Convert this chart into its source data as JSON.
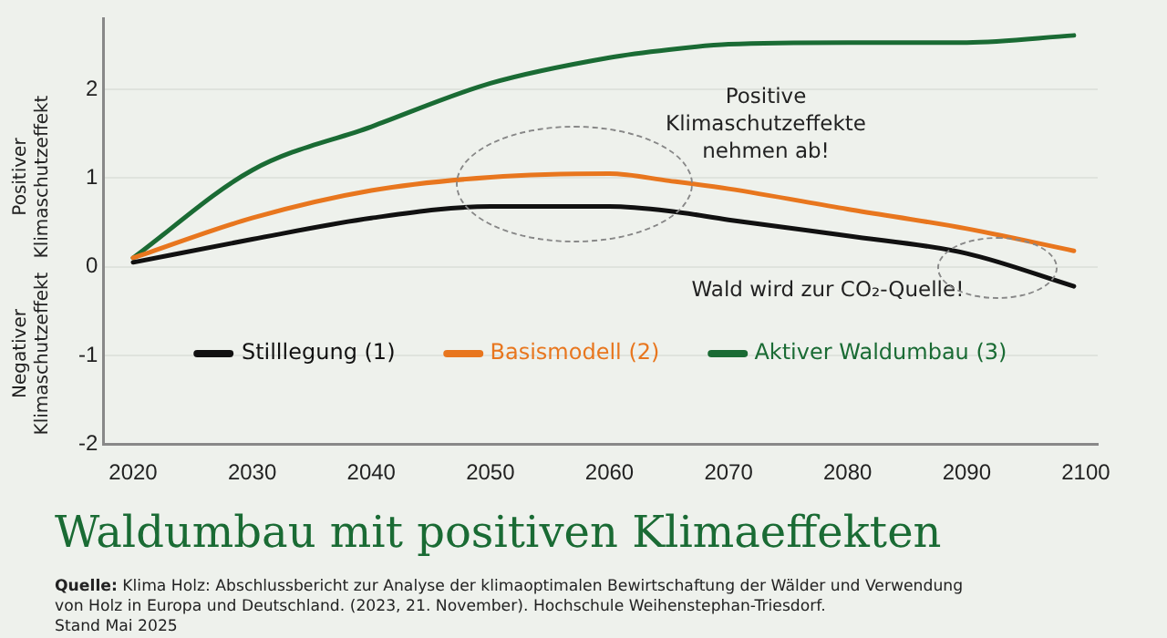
{
  "chart_data": {
    "type": "line",
    "title": "Waldumbau mit positiven Klimaeffekten",
    "ylabel": "Positiver Klimaschutzeffekt",
    "x": [
      2020,
      2030,
      2040,
      2050,
      2060,
      2065,
      2070,
      2080,
      2090,
      2099
    ],
    "series": [
      {
        "name": "Stilllegung (1)",
        "color": "#111111",
        "values": [
          0.05,
          0.31,
          0.55,
          0.68,
          0.68,
          0.63,
          0.53,
          0.35,
          0.15,
          -0.22
        ]
      },
      {
        "name": "Basismodell (2)",
        "color": "#e8761e",
        "values": [
          0.1,
          0.55,
          0.86,
          1.01,
          1.05,
          0.97,
          0.88,
          0.65,
          0.43,
          0.18
        ]
      },
      {
        "name": "Aktiver Waldumbau (3)",
        "color": "#1a6b34",
        "values": [
          0.1,
          1.09,
          1.58,
          2.07,
          2.36,
          2.45,
          2.51,
          2.53,
          2.53,
          2.61
        ]
      }
    ],
    "xlim": [
      2017.5,
      2101
    ],
    "xticks": [
      2020,
      2030,
      2040,
      2050,
      2060,
      2070,
      2080,
      2090,
      2100
    ],
    "ylim": [
      -2,
      2.8
    ],
    "yticks": [
      -2,
      -1,
      0,
      1,
      2
    ],
    "grid": "y",
    "legend": "bottom",
    "marker": "none",
    "line_style": "solid",
    "annotations": [
      "Positive Klimaschutzeffekte nehmen ab!",
      "Wald wird zur CO₂-Quelle!",
      "Negativer Klimaschutzeffekt",
      "Quelle: Klima Holz: Abschlussbericht zur Analyse der klimaoptimalen Bewirtschaftung der Wälder und Verwendung von Holz in Europa und Deutschland. (2023, 21. November). Hochschule Weihenstephan-Triesdorf.",
      "Stand Mai 2025"
    ]
  }
}
